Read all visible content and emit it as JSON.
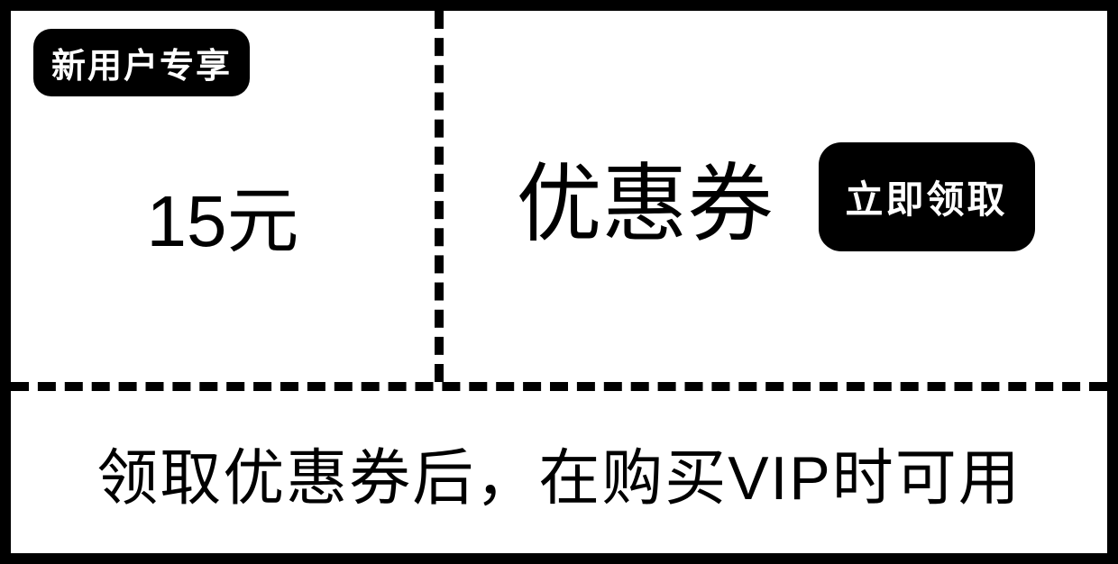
{
  "coupon": {
    "badge_label": "新用户专享",
    "amount": "15元",
    "title": "优惠券",
    "claim_button_label": "立即领取",
    "description": "领取优惠券后，在购买VIP时可用"
  },
  "colors": {
    "border": "#000000",
    "background": "#ffffff",
    "badge_bg": "#000000",
    "badge_text": "#ffffff",
    "button_bg": "#000000",
    "button_text": "#ffffff",
    "text": "#000000"
  }
}
